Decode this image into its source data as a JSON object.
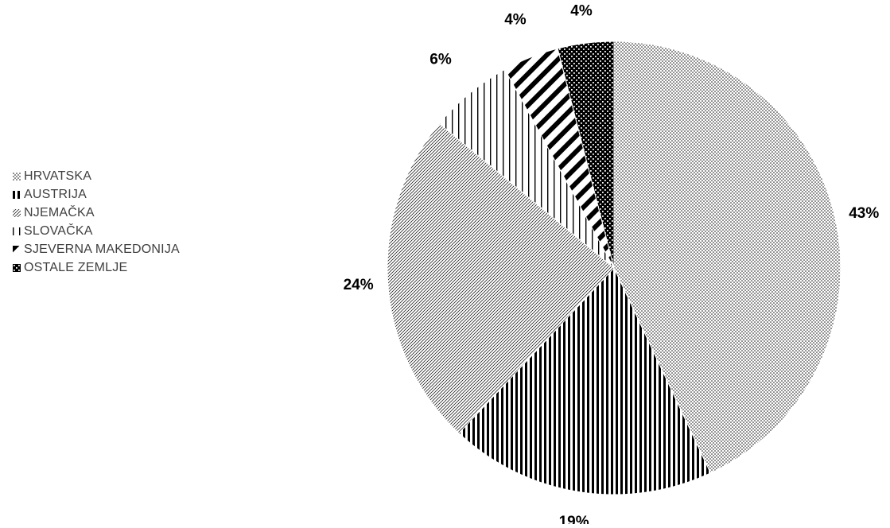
{
  "chart_data": {
    "type": "pie",
    "categories": [
      "HRVATSKA",
      "AUSTRIJA",
      "NJEMAČKA",
      "SLOVAČKA",
      "SJEVERNA MAKEDONIJA",
      "OSTALE ZEMLJE"
    ],
    "values": [
      43,
      19,
      24,
      6,
      4,
      4
    ],
    "data_labels": [
      "43%",
      "19%",
      "24%",
      "6%",
      "4%",
      "4%"
    ],
    "slice_patterns": [
      "fine-dots",
      "vertical-thick",
      "diagonal-fine",
      "vertical-thin",
      "diagonal-wide",
      "dots-dark"
    ],
    "pattern_color": "#000000",
    "background_color": "#ffffff",
    "legend_position": "left",
    "title": "",
    "start_angle": "top",
    "direction": "clockwise"
  }
}
